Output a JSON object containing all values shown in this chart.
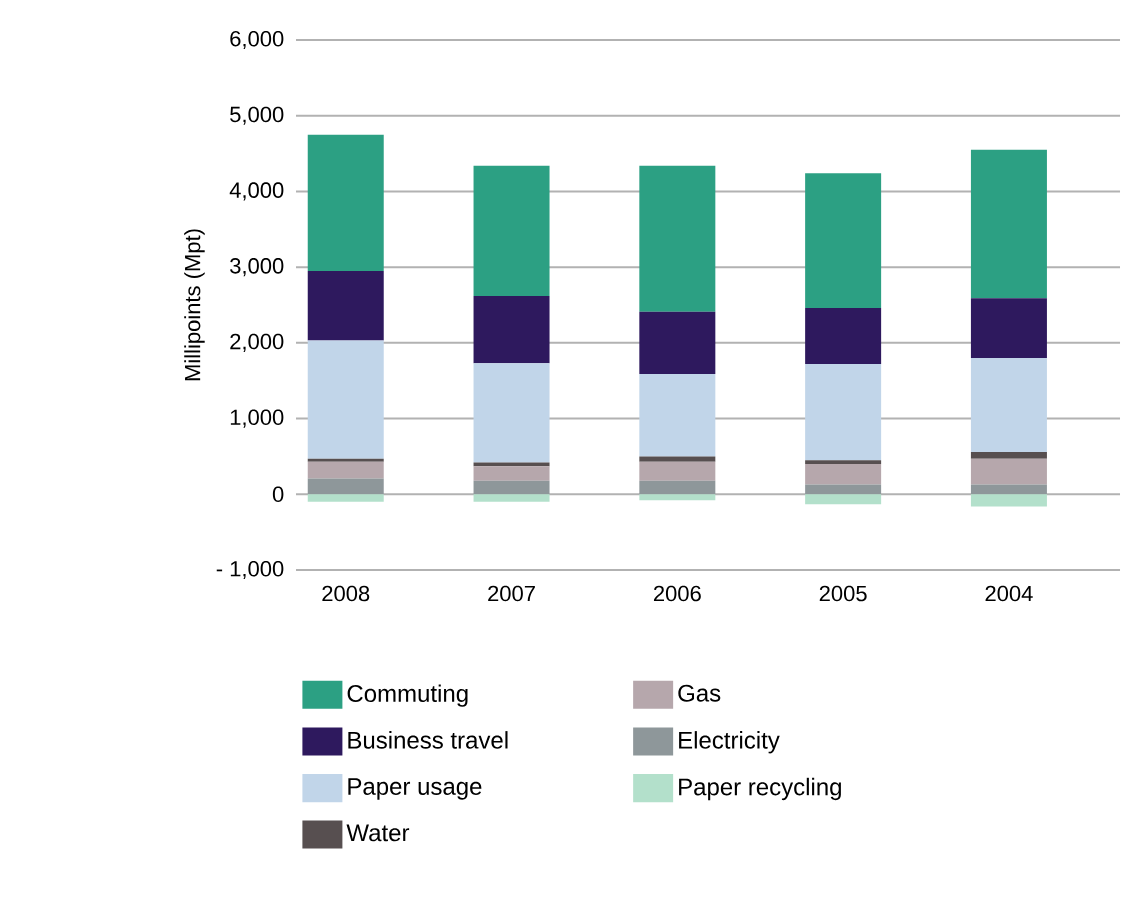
{
  "chart_data": {
    "type": "bar",
    "stacked": true,
    "ylabel": "Millipoints (Mpt)",
    "categories": [
      "2008",
      "2007",
      "2006",
      "2005",
      "2004"
    ],
    "series": [
      {
        "name": "Paper recycling",
        "color": "#b3e0cb",
        "values": [
          -100,
          -100,
          -80,
          -130,
          -160
        ]
      },
      {
        "name": "Electricity",
        "color": "#8e979a",
        "values": [
          210,
          180,
          180,
          130,
          130
        ]
      },
      {
        "name": "Gas",
        "color": "#b6a7ac",
        "values": [
          220,
          190,
          250,
          270,
          340
        ]
      },
      {
        "name": "Water",
        "color": "#574f50",
        "values": [
          40,
          50,
          70,
          50,
          90
        ]
      },
      {
        "name": "Paper usage",
        "color": "#c1d5e9",
        "values": [
          1560,
          1310,
          1090,
          1270,
          1240
        ]
      },
      {
        "name": "Business travel",
        "color": "#2e195e",
        "values": [
          920,
          890,
          820,
          740,
          790
        ]
      },
      {
        "name": "Commuting",
        "color": "#2ca083",
        "values": [
          1800,
          1720,
          1930,
          1780,
          1960
        ]
      }
    ],
    "ylim": [
      -1000,
      6000
    ],
    "yticks": [
      {
        "value": -1000,
        "label": "- 1,000"
      },
      0,
      {
        "value": 1000,
        "label": "1,000"
      },
      {
        "value": 2000,
        "label": "2,000"
      },
      {
        "value": 3000,
        "label": "3,000"
      },
      {
        "value": 4000,
        "label": "4,000"
      },
      {
        "value": 5000,
        "label": "5,000"
      },
      {
        "value": 6000,
        "label": "6,000"
      }
    ],
    "grid": "y",
    "legend": "bottom"
  }
}
